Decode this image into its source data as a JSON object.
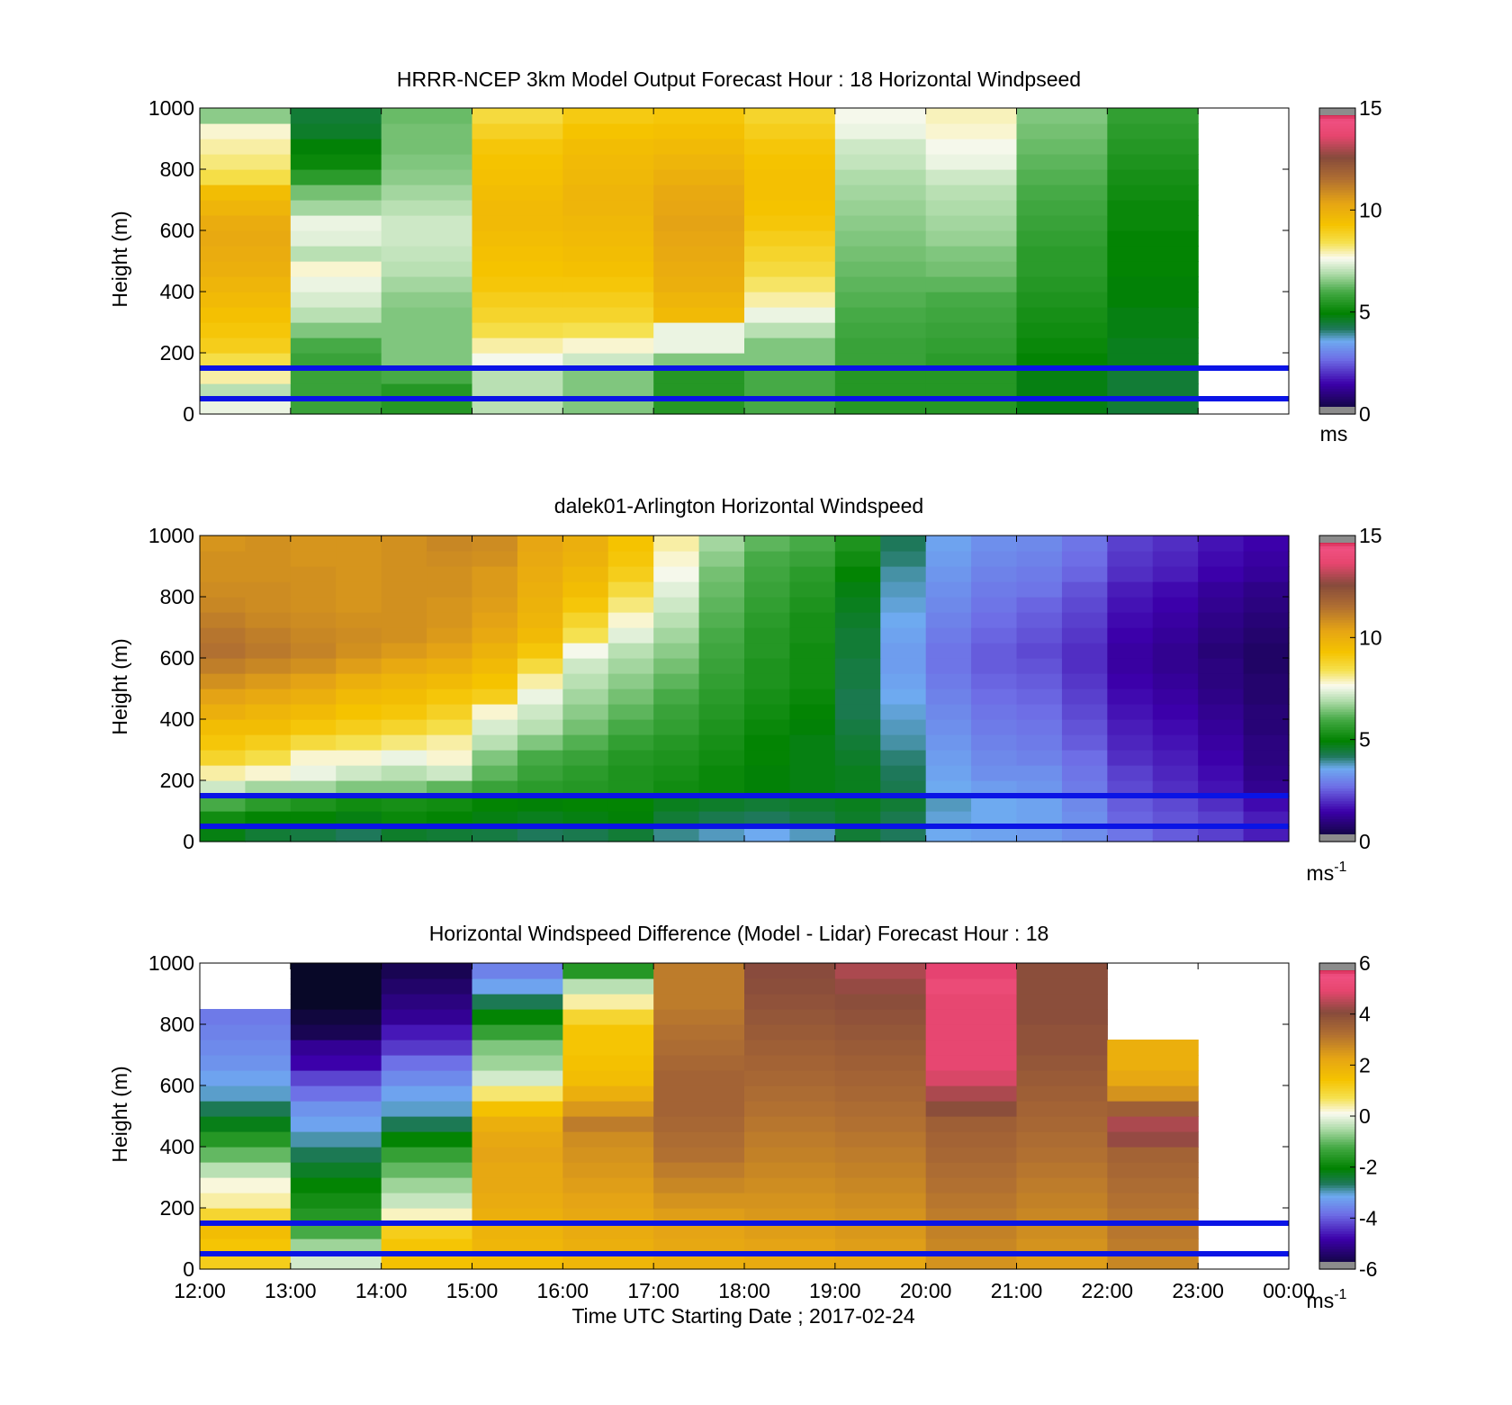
{
  "figure": {
    "xlabel": "Time UTC  Starting Date ; 2017-02-24",
    "x_ticks": [
      "12:00",
      "13:00",
      "14:00",
      "15:00",
      "16:00",
      "17:00",
      "18:00",
      "19:00",
      "20:00",
      "21:00",
      "22:00",
      "23:00",
      "00:00"
    ]
  },
  "chart_data": [
    {
      "type": "heatmap",
      "title": "HRRR-NCEP 3km Model Output   Forecast Hour : 18 Horizontal Windpseed",
      "ylabel": "Height (m)",
      "y_ticks": [
        "0",
        "200",
        "400",
        "600",
        "800",
        "1000"
      ],
      "ylim": [
        0,
        1000
      ],
      "colorbar": {
        "min": 0,
        "max": 15,
        "ticks": [
          "0",
          "5",
          "10",
          "15"
        ],
        "unit": "ms",
        "unit_sup": ""
      },
      "reference_lines_m": [
        50,
        150
      ],
      "line_color": "#0a14e6",
      "x_hours": [
        "12:00",
        "13:00",
        "14:00",
        "15:00",
        "16:00",
        "17:00",
        "18:00",
        "19:00",
        "20:00",
        "21:00",
        "22:00"
      ],
      "height_levels_m": [
        25,
        75,
        125,
        175,
        225,
        275,
        325,
        375,
        425,
        475,
        525,
        575,
        625,
        675,
        725,
        775,
        825,
        875,
        925,
        975
      ],
      "values_ms": [
        [
          7.5,
          5.8,
          5.5,
          7.0,
          6.5,
          5.5,
          6.0,
          5.5,
          5.5,
          4.8,
          4.5
        ],
        [
          7.0,
          5.8,
          5.5,
          7.0,
          6.5,
          5.5,
          6.0,
          5.5,
          5.5,
          4.8,
          4.5
        ],
        [
          8.0,
          5.8,
          6.0,
          7.0,
          6.5,
          5.5,
          6.0,
          5.5,
          5.5,
          4.8,
          4.5
        ],
        [
          8.5,
          5.8,
          6.5,
          7.6,
          7.2,
          6.5,
          6.5,
          5.8,
          5.6,
          5.0,
          4.7
        ],
        [
          9.0,
          6.0,
          6.5,
          8.0,
          7.8,
          7.5,
          6.5,
          5.8,
          5.7,
          5.1,
          4.7
        ],
        [
          9.2,
          6.5,
          6.5,
          8.5,
          8.4,
          7.5,
          7.0,
          5.9,
          5.8,
          5.2,
          4.8
        ],
        [
          9.4,
          7.0,
          6.5,
          8.8,
          8.8,
          9.6,
          7.5,
          6.0,
          5.9,
          5.3,
          4.8
        ],
        [
          9.6,
          7.3,
          6.6,
          9.0,
          9.0,
          9.8,
          8.0,
          6.1,
          6.0,
          5.4,
          4.9
        ],
        [
          9.8,
          7.5,
          6.8,
          9.2,
          9.2,
          10.0,
          8.3,
          6.2,
          6.2,
          5.5,
          4.9
        ],
        [
          10.0,
          7.8,
          7.0,
          9.3,
          9.4,
          10.1,
          8.6,
          6.3,
          6.4,
          5.6,
          5.0
        ],
        [
          10.1,
          7.0,
          7.1,
          9.4,
          9.5,
          10.2,
          8.8,
          6.4,
          6.5,
          5.6,
          5.0
        ],
        [
          10.2,
          7.4,
          7.2,
          9.5,
          9.6,
          10.3,
          9.0,
          6.5,
          6.7,
          5.7,
          5.0
        ],
        [
          10.1,
          7.5,
          7.2,
          9.6,
          9.7,
          10.4,
          9.2,
          6.6,
          6.8,
          5.8,
          5.1
        ],
        [
          9.8,
          6.8,
          7.0,
          9.6,
          9.8,
          10.3,
          9.3,
          6.7,
          6.9,
          5.9,
          5.1
        ],
        [
          9.5,
          6.4,
          6.8,
          9.5,
          9.8,
          10.2,
          9.4,
          6.8,
          7.0,
          6.0,
          5.2
        ],
        [
          8.5,
          5.6,
          6.6,
          9.4,
          9.7,
          10.0,
          9.4,
          6.9,
          7.2,
          6.1,
          5.3
        ],
        [
          8.2,
          5.1,
          6.5,
          9.3,
          9.6,
          9.8,
          9.3,
          7.1,
          7.5,
          6.2,
          5.4
        ],
        [
          8.0,
          4.9,
          6.4,
          9.2,
          9.5,
          9.6,
          9.2,
          7.2,
          7.6,
          6.3,
          5.5
        ],
        [
          7.8,
          4.6,
          6.4,
          8.9,
          9.3,
          9.4,
          9.0,
          7.5,
          7.8,
          6.4,
          5.6
        ],
        [
          6.6,
          4.5,
          6.3,
          8.6,
          9.1,
          9.2,
          8.8,
          7.6,
          7.9,
          6.5,
          5.7
        ]
      ]
    },
    {
      "type": "heatmap",
      "title": "dalek01-Arlington  Horizontal Windspeed",
      "ylabel": "Height (m)",
      "y_ticks": [
        "0",
        "200",
        "400",
        "600",
        "800",
        "1000"
      ],
      "ylim": [
        0,
        1000
      ],
      "colorbar": {
        "min": 0,
        "max": 15,
        "ticks": [
          "0",
          "5",
          "10",
          "15"
        ],
        "unit": "ms",
        "unit_sup": "-1"
      },
      "reference_lines_m": [
        50,
        150
      ],
      "line_color": "#0a14e6",
      "x_hours": [
        "12:00",
        "12:30",
        "13:00",
        "13:30",
        "14:00",
        "14:30",
        "15:00",
        "15:30",
        "16:00",
        "16:30",
        "17:00",
        "17:30",
        "18:00",
        "18:30",
        "19:00",
        "19:30",
        "20:00",
        "20:30",
        "21:00",
        "21:30",
        "22:00",
        "22:30",
        "23:00",
        "23:30"
      ],
      "height_levels_m": [
        25,
        75,
        125,
        175,
        225,
        275,
        325,
        375,
        425,
        475,
        525,
        575,
        625,
        675,
        725,
        775,
        825,
        875,
        925,
        975
      ],
      "values_ms": [
        [
          4.8,
          4.5,
          4.4,
          4.2,
          4.6,
          4.5,
          4.4,
          4.2,
          4.3,
          4.5,
          4.0,
          3.8,
          3.6,
          3.8,
          4.5,
          4.2,
          3.6,
          3.5,
          3.4,
          3.2,
          2.8,
          2.5,
          2.2,
          1.8
        ],
        [
          5.2,
          5.0,
          5.0,
          4.8,
          5.1,
          5.0,
          4.8,
          4.7,
          4.8,
          4.9,
          4.5,
          4.3,
          4.2,
          4.4,
          4.6,
          4.3,
          3.7,
          3.6,
          3.5,
          3.2,
          2.6,
          2.4,
          2.2,
          1.8
        ],
        [
          6.0,
          5.6,
          5.4,
          5.2,
          5.3,
          5.2,
          5.0,
          4.9,
          5.0,
          5.0,
          4.7,
          4.6,
          4.5,
          4.6,
          4.7,
          4.5,
          3.8,
          3.6,
          3.5,
          3.1,
          2.5,
          2.3,
          2.0,
          1.6
        ],
        [
          7.2,
          6.8,
          6.8,
          6.5,
          6.5,
          6.2,
          5.8,
          5.6,
          5.5,
          5.4,
          5.2,
          5.1,
          4.9,
          4.8,
          4.7,
          4.3,
          3.6,
          3.4,
          3.3,
          2.9,
          2.3,
          2.0,
          1.7,
          1.2
        ],
        [
          8.0,
          7.8,
          7.5,
          7.2,
          7.0,
          7.2,
          6.2,
          5.8,
          5.6,
          5.4,
          5.3,
          5.1,
          4.9,
          4.8,
          4.7,
          4.2,
          3.5,
          3.2,
          3.2,
          2.8,
          2.2,
          1.9,
          1.6,
          1.1
        ],
        [
          8.8,
          8.5,
          7.8,
          7.8,
          7.5,
          7.8,
          6.5,
          6.0,
          5.8,
          5.5,
          5.4,
          5.2,
          5.0,
          4.8,
          4.6,
          4.1,
          3.4,
          3.1,
          3.0,
          2.7,
          2.0,
          1.8,
          1.5,
          1.0
        ],
        [
          9.2,
          9.0,
          8.6,
          8.4,
          8.2,
          8.0,
          7.0,
          6.5,
          6.1,
          5.7,
          5.5,
          5.3,
          5.0,
          4.8,
          4.5,
          3.9,
          3.3,
          3.0,
          2.9,
          2.5,
          1.9,
          1.7,
          1.4,
          1.0
        ],
        [
          9.5,
          9.5,
          9.2,
          9.0,
          8.8,
          8.5,
          7.3,
          7.0,
          6.4,
          6.0,
          5.7,
          5.4,
          5.1,
          4.9,
          4.4,
          3.8,
          3.2,
          2.9,
          2.8,
          2.4,
          1.8,
          1.6,
          1.3,
          0.9
        ],
        [
          10.0,
          9.8,
          9.6,
          9.3,
          9.2,
          8.9,
          7.8,
          7.2,
          6.6,
          6.2,
          5.8,
          5.5,
          5.2,
          5.0,
          4.3,
          3.7,
          3.1,
          2.8,
          2.7,
          2.3,
          1.7,
          1.5,
          1.2,
          0.9
        ],
        [
          10.4,
          10.2,
          10.0,
          9.6,
          9.5,
          9.2,
          9.0,
          7.5,
          6.8,
          6.4,
          6.0,
          5.6,
          5.3,
          5.1,
          4.3,
          3.6,
          3.0,
          2.7,
          2.6,
          2.2,
          1.6,
          1.4,
          1.1,
          0.8
        ],
        [
          10.8,
          10.6,
          10.4,
          10.0,
          9.8,
          9.6,
          9.3,
          8.0,
          7.0,
          6.6,
          6.2,
          5.7,
          5.4,
          5.2,
          4.4,
          3.5,
          2.9,
          2.6,
          2.5,
          2.1,
          1.5,
          1.3,
          1.0,
          0.8
        ],
        [
          11.2,
          11.0,
          10.8,
          10.5,
          10.2,
          10.0,
          9.6,
          8.6,
          7.2,
          6.8,
          6.4,
          5.8,
          5.4,
          5.2,
          4.4,
          3.4,
          2.8,
          2.5,
          2.4,
          2.0,
          1.4,
          1.2,
          1.0,
          0.7
        ],
        [
          11.5,
          11.3,
          11.1,
          10.8,
          10.6,
          10.4,
          9.9,
          9.2,
          7.6,
          7.0,
          6.6,
          5.9,
          5.5,
          5.2,
          4.5,
          3.4,
          2.8,
          2.5,
          2.3,
          2.0,
          1.4,
          1.2,
          0.9,
          0.7
        ],
        [
          11.4,
          11.2,
          11.0,
          10.9,
          10.8,
          10.6,
          10.2,
          9.6,
          8.4,
          7.4,
          6.8,
          6.0,
          5.5,
          5.3,
          4.5,
          3.5,
          2.9,
          2.6,
          2.4,
          2.1,
          1.5,
          1.3,
          1.0,
          0.8
        ],
        [
          11.2,
          11.0,
          10.9,
          10.8,
          10.8,
          10.7,
          10.4,
          9.8,
          8.8,
          7.8,
          7.0,
          6.1,
          5.6,
          5.3,
          4.6,
          3.6,
          3.0,
          2.7,
          2.5,
          2.2,
          1.6,
          1.4,
          1.1,
          0.9
        ],
        [
          11.0,
          10.9,
          10.8,
          10.7,
          10.8,
          10.7,
          10.5,
          9.9,
          9.2,
          8.2,
          7.2,
          6.2,
          5.7,
          5.4,
          4.7,
          3.7,
          3.1,
          2.8,
          2.6,
          2.3,
          1.7,
          1.5,
          1.2,
          1.0
        ],
        [
          10.9,
          10.9,
          10.8,
          10.7,
          10.8,
          10.8,
          10.6,
          10.0,
          9.5,
          8.6,
          7.4,
          6.3,
          5.8,
          5.5,
          4.8,
          3.8,
          3.2,
          2.9,
          2.8,
          2.4,
          1.8,
          1.6,
          1.3,
          1.1
        ],
        [
          10.8,
          10.8,
          10.8,
          10.7,
          10.8,
          10.8,
          10.6,
          10.1,
          9.7,
          9.0,
          7.6,
          6.4,
          5.9,
          5.6,
          5.0,
          3.9,
          3.3,
          3.0,
          2.9,
          2.6,
          2.0,
          1.8,
          1.5,
          1.3
        ],
        [
          10.8,
          10.8,
          10.7,
          10.7,
          10.8,
          10.9,
          10.8,
          10.2,
          9.9,
          9.2,
          7.8,
          6.6,
          6.0,
          5.8,
          5.2,
          4.1,
          3.4,
          3.1,
          3.0,
          2.7,
          2.1,
          1.9,
          1.6,
          1.4
        ],
        [
          10.7,
          10.8,
          10.7,
          10.7,
          10.8,
          11.0,
          10.9,
          10.3,
          10.0,
          9.3,
          8.0,
          6.8,
          6.2,
          6.0,
          5.4,
          4.2,
          3.5,
          3.2,
          3.1,
          2.8,
          2.2,
          2.0,
          1.7,
          1.5
        ]
      ]
    },
    {
      "type": "heatmap",
      "title": "Horizontal Windspeed Difference (Model - Lidar) Forecast Hour : 18",
      "ylabel": "Height (m)",
      "y_ticks": [
        "0",
        "200",
        "400",
        "600",
        "800",
        "1000"
      ],
      "ylim": [
        0,
        1000
      ],
      "colorbar": {
        "min": -6,
        "max": 6,
        "ticks": [
          "-6",
          "-4",
          "-2",
          "0",
          "2",
          "4",
          "6"
        ],
        "unit": "ms",
        "unit_sup": "-1"
      },
      "reference_lines_m": [
        50,
        150
      ],
      "line_color": "#0a14e6",
      "x_hours": [
        "12:00",
        "13:00",
        "14:00",
        "15:00",
        "16:00",
        "17:00",
        "18:00",
        "19:00",
        "20:00",
        "21:00",
        "22:00"
      ],
      "height_levels_m": [
        25,
        75,
        125,
        175,
        225,
        275,
        325,
        375,
        425,
        475,
        525,
        575,
        625,
        675,
        725,
        775,
        825,
        875,
        925,
        975
      ],
      "values_ms": [
        [
          1.2,
          -0.2,
          1.5,
          1.6,
          1.8,
          2.0,
          2.1,
          2.2,
          2.6,
          2.4,
          2.8
        ],
        [
          1.4,
          -0.6,
          1.4,
          1.8,
          2.0,
          2.2,
          2.3,
          2.4,
          2.8,
          2.6,
          3.0
        ],
        [
          1.6,
          -1.2,
          1.2,
          1.9,
          2.1,
          2.3,
          2.4,
          2.5,
          2.9,
          2.7,
          3.1
        ],
        [
          1.0,
          -1.6,
          0.3,
          2.0,
          2.2,
          2.4,
          2.5,
          2.6,
          3.0,
          2.8,
          3.1
        ],
        [
          0.4,
          -1.8,
          -0.3,
          2.1,
          2.3,
          2.6,
          2.6,
          2.7,
          3.1,
          2.9,
          3.2
        ],
        [
          0.2,
          -2.0,
          -0.6,
          2.2,
          2.4,
          2.8,
          2.7,
          2.8,
          3.2,
          3.0,
          3.3
        ],
        [
          -0.4,
          -2.3,
          -1.0,
          2.2,
          2.5,
          3.0,
          2.8,
          2.9,
          3.3,
          3.1,
          3.4
        ],
        [
          -1.0,
          -2.6,
          -1.4,
          2.3,
          2.6,
          3.2,
          2.9,
          3.0,
          3.4,
          3.2,
          3.5
        ],
        [
          -1.6,
          -2.9,
          -2.0,
          2.2,
          2.7,
          3.3,
          3.0,
          3.1,
          3.5,
          3.3,
          4.2
        ],
        [
          -2.2,
          -3.2,
          -2.6,
          2.0,
          3.0,
          3.4,
          3.1,
          3.2,
          3.6,
          3.4,
          4.4
        ],
        [
          -2.6,
          -3.4,
          -3.0,
          1.5,
          2.5,
          3.5,
          3.2,
          3.3,
          4.0,
          3.5,
          3.6
        ],
        [
          -3.0,
          -3.8,
          -3.2,
          0.6,
          2.0,
          3.5,
          3.3,
          3.4,
          4.4,
          3.6,
          2.6
        ],
        [
          -3.2,
          -4.2,
          -3.5,
          -0.2,
          1.6,
          3.5,
          3.4,
          3.5,
          4.8,
          3.7,
          2.2
        ],
        [
          -3.4,
          -4.8,
          -3.8,
          -0.6,
          1.5,
          3.4,
          3.5,
          3.6,
          5.0,
          3.8,
          2.0
        ],
        [
          -3.5,
          -5.0,
          -4.3,
          -0.8,
          1.4,
          3.3,
          3.6,
          3.7,
          5.0,
          3.9,
          2.0
        ],
        [
          -3.6,
          -5.6,
          -4.6,
          -1.4,
          1.4,
          3.2,
          3.7,
          3.8,
          5.0,
          3.9,
          null
        ],
        [
          -3.7,
          -5.8,
          -5.0,
          -2.0,
          1.0,
          3.1,
          3.8,
          3.9,
          5.0,
          4.0,
          null
        ],
        [
          null,
          -6.0,
          -5.2,
          -2.6,
          0.4,
          3.0,
          3.9,
          4.0,
          5.0,
          4.0,
          null
        ],
        [
          null,
          -6.5,
          -5.4,
          -3.2,
          -0.4,
          3.0,
          4.0,
          4.2,
          5.2,
          4.0,
          null
        ],
        [
          null,
          -6.5,
          -5.6,
          -3.6,
          -1.6,
          3.0,
          4.1,
          4.4,
          5.6,
          4.0,
          null
        ]
      ]
    }
  ]
}
